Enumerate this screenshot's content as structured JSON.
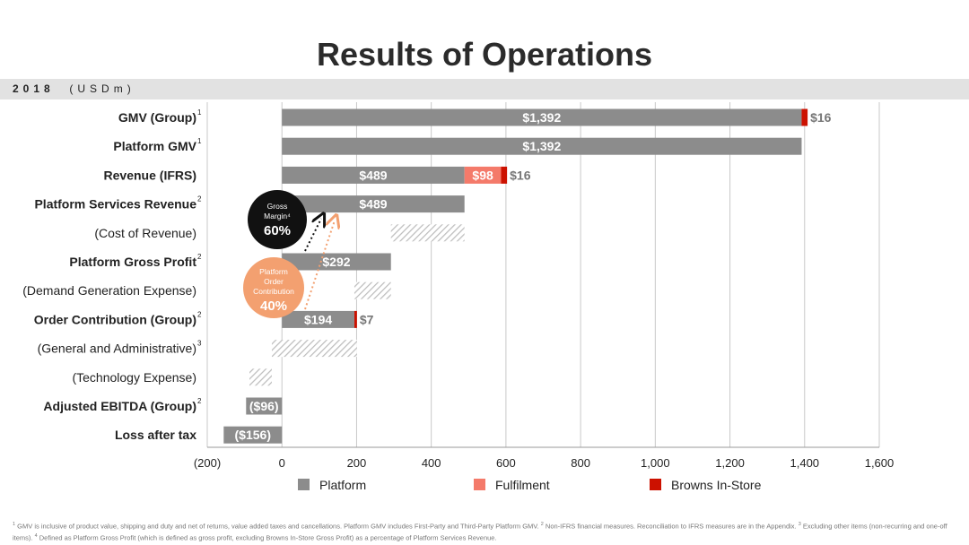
{
  "title": "Results of Operations",
  "subtitle_year": "2018",
  "subtitle_unit": "(USDm)",
  "colors": {
    "platform": "#8c8c8c",
    "fulfilment": "#f47a6a",
    "browns": "#cc1100",
    "gross_margin_circle": "#111111",
    "poc_circle": "#f3a070",
    "hatch": "#bdbdbd"
  },
  "chart_data": {
    "type": "bar",
    "orientation": "horizontal-waterfall",
    "xlim": [
      -200,
      1600
    ],
    "xticks": [
      "(200)",
      "0",
      "200",
      "400",
      "600",
      "800",
      "1,000",
      "1,200",
      "1,400",
      "1,600"
    ],
    "xtick_values": [
      -200,
      0,
      200,
      400,
      600,
      800,
      1000,
      1200,
      1400,
      1600
    ],
    "grid": "vertical",
    "legend": [
      {
        "name": "Platform",
        "key": "platform"
      },
      {
        "name": "Fulfilment",
        "key": "fulfilment"
      },
      {
        "name": "Browns In-Store",
        "key": "browns"
      }
    ],
    "rows": [
      {
        "label": "GMV (Group)",
        "sup": "1",
        "bold": true,
        "segments": [
          {
            "series": "platform",
            "start": 0,
            "end": 1392,
            "label": "$1,392",
            "label_pos": "inside"
          },
          {
            "series": "browns",
            "start": 1392,
            "end": 1408,
            "label": "$16",
            "label_pos": "outside"
          }
        ]
      },
      {
        "label": "Platform GMV",
        "sup": "1",
        "bold": true,
        "segments": [
          {
            "series": "platform",
            "start": 0,
            "end": 1392,
            "label": "$1,392",
            "label_pos": "inside"
          }
        ]
      },
      {
        "label": "Revenue (IFRS)",
        "sup": "",
        "bold": true,
        "segments": [
          {
            "series": "platform",
            "start": 0,
            "end": 489,
            "label": "$489",
            "label_pos": "inside"
          },
          {
            "series": "fulfilment",
            "start": 489,
            "end": 587,
            "label": "$98",
            "label_pos": "inside"
          },
          {
            "series": "browns",
            "start": 587,
            "end": 603,
            "label": "$16",
            "label_pos": "outside"
          }
        ]
      },
      {
        "label": "Platform Services Revenue",
        "sup": "2",
        "bold": true,
        "segments": [
          {
            "series": "platform",
            "start": 0,
            "end": 489,
            "label": "$489",
            "label_pos": "inside"
          }
        ]
      },
      {
        "label": "(Cost of Revenue)",
        "sup": "",
        "bold": false,
        "segments": [
          {
            "series": "hatch",
            "start": 292,
            "end": 489,
            "label": "",
            "label_pos": ""
          }
        ]
      },
      {
        "label": "Platform Gross Profit",
        "sup": "2",
        "bold": true,
        "segments": [
          {
            "series": "platform",
            "start": 0,
            "end": 292,
            "label": "$292",
            "label_pos": "inside"
          }
        ]
      },
      {
        "label": "(Demand Generation Expense)",
        "sup": "",
        "bold": false,
        "segments": [
          {
            "series": "hatch",
            "start": 194,
            "end": 292,
            "label": "",
            "label_pos": ""
          }
        ]
      },
      {
        "label": "Order Contribution (Group)",
        "sup": "2",
        "bold": true,
        "segments": [
          {
            "series": "platform",
            "start": 0,
            "end": 194,
            "label": "$194",
            "label_pos": "inside"
          },
          {
            "series": "browns",
            "start": 194,
            "end": 201,
            "label": "$7",
            "label_pos": "outside"
          }
        ]
      },
      {
        "label": "(General and Administrative)",
        "sup": "3",
        "bold": false,
        "segments": [
          {
            "series": "hatch",
            "start": -27,
            "end": 201,
            "label": "",
            "label_pos": ""
          }
        ]
      },
      {
        "label": "(Technology Expense)",
        "sup": "",
        "bold": false,
        "segments": [
          {
            "series": "hatch",
            "start": -87,
            "end": -27,
            "label": "",
            "label_pos": ""
          }
        ]
      },
      {
        "label": "Adjusted EBITDA (Group)",
        "sup": "2",
        "bold": true,
        "segments": [
          {
            "series": "platform",
            "start": -96,
            "end": 0,
            "label": "($96)",
            "label_pos": "inside"
          }
        ]
      },
      {
        "label": "Loss after tax",
        "sup": "",
        "bold": true,
        "segments": [
          {
            "series": "platform",
            "start": -156,
            "end": 0,
            "label": "($156)",
            "label_pos": "inside"
          }
        ]
      }
    ],
    "annotations": [
      {
        "kind": "gross-margin",
        "lines": [
          "Gross",
          "Margin⁴"
        ],
        "value": "60%"
      },
      {
        "kind": "platform-order-contribution",
        "lines": [
          "Platform",
          "Order",
          "Contribution"
        ],
        "value": "40%"
      }
    ]
  },
  "footnote": {
    "parts": [
      {
        "sup": "1",
        "text": " GMV is inclusive of product value, shipping and duty and net of returns, value added taxes and cancellations. Platform GMV includes First-Party and Third-Party Platform GMV. "
      },
      {
        "sup": "2",
        "text": " Non-IFRS financial measures. Reconciliation to IFRS measures are in the Appendix. "
      },
      {
        "sup": "3",
        "text": " Excluding other items (non-recurring and one-off items). "
      },
      {
        "sup": "4",
        "text": " Defined as Platform Gross Profit (which is defined as gross profit, excluding Browns In-Store Gross Profit) as a percentage of Platform Services Revenue."
      }
    ]
  }
}
